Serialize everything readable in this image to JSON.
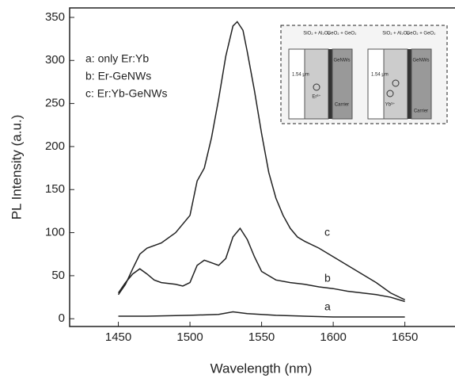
{
  "chart_data": {
    "type": "line",
    "x_label": "Wavelength (nm)",
    "y_label": "PL Intensity (a.u.)",
    "xlim": [
      1416,
      1685
    ],
    "ylim": [
      -9,
      361
    ],
    "xticks": [
      1450,
      1500,
      1550,
      1600,
      1650
    ],
    "yticks": [
      0,
      50,
      100,
      150,
      200,
      250,
      300,
      350
    ],
    "series": [
      {
        "name": "a: only Er:Yb",
        "label": "a",
        "color": "#222222",
        "x": [
          1450,
          1470,
          1500,
          1520,
          1530,
          1540,
          1560,
          1580,
          1600,
          1620,
          1650
        ],
        "values": [
          3,
          3,
          4,
          5,
          8,
          6,
          4,
          3,
          2,
          2,
          2
        ]
      },
      {
        "name": "b: Er-GeNWs",
        "label": "b",
        "color": "#222222",
        "x": [
          1450,
          1455,
          1460,
          1465,
          1470,
          1475,
          1480,
          1490,
          1495,
          1500,
          1505,
          1510,
          1515,
          1520,
          1525,
          1530,
          1535,
          1540,
          1545,
          1550,
          1560,
          1570,
          1580,
          1590,
          1600,
          1610,
          1620,
          1630,
          1640,
          1650
        ],
        "values": [
          30,
          42,
          52,
          58,
          52,
          45,
          42,
          40,
          38,
          42,
          62,
          68,
          65,
          62,
          70,
          95,
          105,
          92,
          72,
          55,
          45,
          42,
          40,
          37,
          35,
          32,
          30,
          28,
          25,
          20
        ]
      },
      {
        "name": "c: Er:Yb-GeNWs",
        "label": "c",
        "color": "#222222",
        "x": [
          1450,
          1455,
          1460,
          1465,
          1470,
          1480,
          1490,
          1500,
          1505,
          1510,
          1515,
          1520,
          1525,
          1530,
          1533,
          1537,
          1540,
          1545,
          1550,
          1555,
          1560,
          1565,
          1570,
          1575,
          1580,
          1590,
          1600,
          1610,
          1620,
          1630,
          1640,
          1650
        ],
        "values": [
          28,
          40,
          58,
          75,
          82,
          88,
          100,
          120,
          160,
          175,
          210,
          255,
          305,
          340,
          345,
          335,
          310,
          265,
          215,
          170,
          140,
          120,
          105,
          95,
          90,
          82,
          72,
          62,
          52,
          42,
          30,
          22
        ]
      }
    ],
    "inset": {
      "left_top": "SiO₂ + Al₂O₃",
      "left_top2": "GeO₂ + GeO₂",
      "left_beam": "1.54 μm",
      "left_ion": "Er³⁺",
      "left_wire": "GeNWs",
      "left_carrier": "Carrier",
      "right_top": "SiO₂ + Al₂O₃",
      "right_top2": "GeO₂ + GeO₂",
      "right_beam": "1.54 μm",
      "right_ion": "Yb³⁺",
      "right_wire": "GeNWs",
      "right_carrier": "Carrier"
    }
  }
}
